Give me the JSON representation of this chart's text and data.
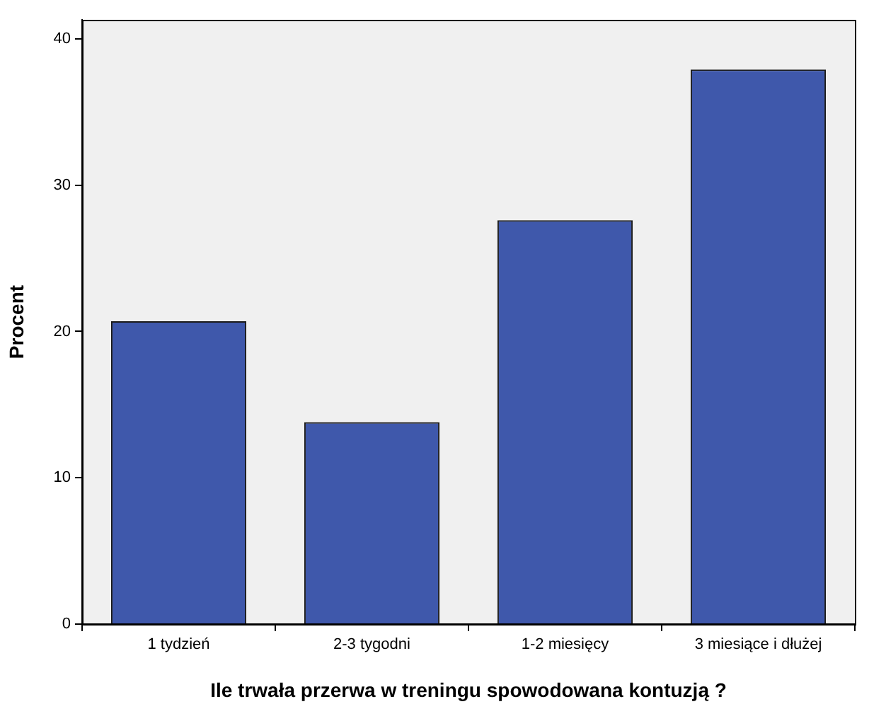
{
  "chart_data": {
    "type": "bar",
    "xlabel": "Ile trwała przerwa w treningu spowodowana kontuzją ?",
    "ylabel": "Procent",
    "categories": [
      "1 tydzień",
      "2-3 tygodni",
      "1-2 miesięcy",
      "3 miesiące i dłużej"
    ],
    "values": [
      20.7,
      13.8,
      27.6,
      37.9
    ],
    "color": "#3f58ab",
    "ylim": [
      0,
      41.3
    ],
    "yticks": [
      0,
      10,
      20,
      30,
      40
    ],
    "grid": false,
    "legend": false
  }
}
